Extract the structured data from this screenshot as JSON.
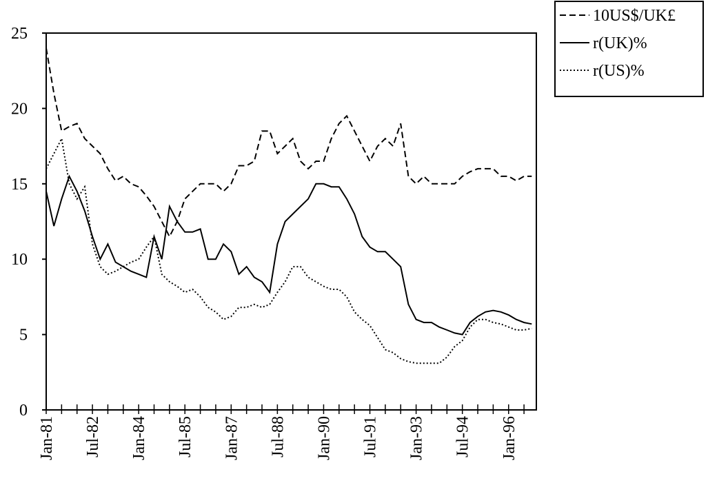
{
  "chart_data": {
    "type": "line",
    "categories": [
      "Jan-81",
      null,
      null,
      null,
      null,
      null,
      "Jul-82",
      null,
      null,
      null,
      null,
      null,
      "Jan-84",
      null,
      null,
      null,
      null,
      null,
      "Jul-85",
      null,
      null,
      null,
      null,
      null,
      "Jan-87",
      null,
      null,
      null,
      null,
      null,
      "Jul-88",
      null,
      null,
      null,
      null,
      null,
      "Jan-90",
      null,
      null,
      null,
      null,
      null,
      "Jul-91",
      null,
      null,
      null,
      null,
      null,
      "Jan-93",
      null,
      null,
      null,
      null,
      null,
      "Jul-94",
      null,
      null,
      null,
      null,
      null,
      "Jan-96",
      null,
      null,
      null
    ],
    "series": [
      {
        "name": "10US$/UK£",
        "color": "#000000",
        "dash": "dashed",
        "values": [
          24,
          21,
          18.5,
          18.8,
          19,
          18,
          17.5,
          17,
          16,
          15.2,
          15.5,
          15,
          14.8,
          14.2,
          13.5,
          12.5,
          11.5,
          12.5,
          14,
          14.5,
          15,
          15,
          15,
          14.5,
          15,
          16.2,
          16.2,
          16.5,
          18.5,
          18.5,
          17,
          17.5,
          18,
          16.5,
          16,
          16.5,
          16.5,
          18,
          19,
          19.5,
          18.5,
          17.5,
          16.5,
          17.5,
          18,
          17.5,
          19,
          15.5,
          15,
          15.5,
          15,
          15,
          15,
          15,
          15.5,
          15.8,
          16,
          16,
          16,
          15.5,
          15.5,
          15.2,
          15.5,
          15.5
        ]
      },
      {
        "name": "r(UK)%",
        "color": "#000000",
        "dash": "solid",
        "values": [
          14.5,
          12.2,
          14,
          15.5,
          14.5,
          13.2,
          11.5,
          10,
          11,
          9.8,
          9.5,
          9.2,
          9,
          8.8,
          11.5,
          10,
          13.5,
          12.5,
          11.8,
          11.8,
          12,
          10,
          10,
          11,
          10.5,
          9,
          9.5,
          8.8,
          8.5,
          7.8,
          11,
          12.5,
          13,
          13.5,
          14,
          15,
          15,
          14.8,
          14.8,
          14,
          13,
          11.5,
          10.8,
          10.5,
          10.5,
          10,
          9.5,
          7,
          6,
          5.8,
          5.8,
          5.5,
          5.3,
          5.1,
          5,
          5.8,
          6.2,
          6.5,
          6.6,
          6.5,
          6.3,
          6,
          5.8,
          5.7
        ]
      },
      {
        "name": "r(US)%",
        "color": "#000000",
        "dash": "dotted",
        "values": [
          16,
          17,
          18,
          15,
          14,
          14.8,
          11,
          9.5,
          9,
          9.2,
          9.5,
          9.8,
          10,
          10.8,
          11.5,
          9,
          8.5,
          8.2,
          7.8,
          8,
          7.5,
          6.8,
          6.5,
          6,
          6.2,
          6.8,
          6.8,
          7,
          6.8,
          7,
          7.8,
          8.5,
          9.5,
          9.5,
          8.8,
          8.5,
          8.2,
          8,
          8,
          7.5,
          6.5,
          6,
          5.6,
          4.8,
          4,
          3.8,
          3.4,
          3.2,
          3.1,
          3.1,
          3.1,
          3.1,
          3.5,
          4.2,
          4.6,
          5.5,
          6,
          6,
          5.8,
          5.7,
          5.5,
          5.3,
          5.3,
          5.4
        ]
      }
    ],
    "ylim": [
      0,
      25
    ],
    "yticks": [
      0,
      5,
      10,
      15,
      20,
      25
    ],
    "grid": false,
    "legend": "top-right"
  }
}
